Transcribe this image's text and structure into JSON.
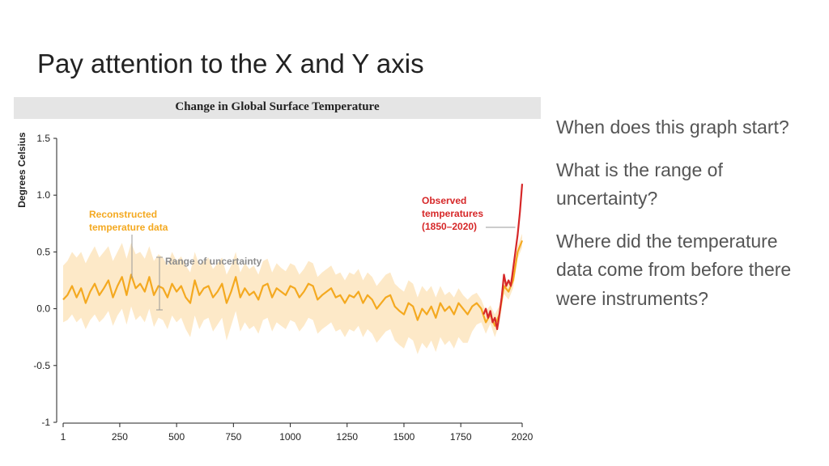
{
  "slide": {
    "title": "Pay attention to the X and Y axis",
    "questions": [
      "When does this graph start?",
      "What is the range of uncertainty?",
      "Where did the temperature data come from before there were instruments?"
    ]
  },
  "colors": {
    "reconstructed": "#f4a920",
    "uncertainty_band": "#fde9c8",
    "observed": "#d62728",
    "uncertainty_label": "#8c8c8c",
    "banner": "#e5e5e5"
  },
  "chart_data": {
    "type": "line",
    "title": "Change in Global Surface Temperature",
    "xlabel": "",
    "ylabel": "Degrees Celsius",
    "xlim": [
      1,
      2020
    ],
    "ylim": [
      -1,
      1.5
    ],
    "x_ticks": [
      "1",
      "250",
      "500",
      "750",
      "1000",
      "1250",
      "1500",
      "1750",
      "2020"
    ],
    "y_ticks": [
      "1.5",
      "1.0",
      "0.5",
      "0.0",
      "-0.5",
      "-1"
    ],
    "grid": false,
    "annotations": {
      "reconstructed": [
        "Reconstructed",
        "temperature data"
      ],
      "uncertainty": "Range of uncertainty",
      "observed": [
        "Observed",
        "temperatures",
        "(1850–2020)"
      ]
    },
    "series": [
      {
        "name": "Reconstructed temperature data",
        "x": [
          1,
          20,
          40,
          60,
          80,
          100,
          120,
          140,
          160,
          180,
          200,
          220,
          240,
          260,
          280,
          300,
          320,
          340,
          360,
          380,
          400,
          420,
          440,
          460,
          480,
          500,
          520,
          540,
          560,
          580,
          600,
          620,
          640,
          660,
          680,
          700,
          720,
          740,
          760,
          780,
          800,
          820,
          840,
          860,
          880,
          900,
          920,
          940,
          960,
          980,
          1000,
          1020,
          1040,
          1060,
          1080,
          1100,
          1120,
          1140,
          1160,
          1180,
          1200,
          1220,
          1240,
          1260,
          1280,
          1300,
          1320,
          1340,
          1360,
          1380,
          1400,
          1420,
          1440,
          1460,
          1480,
          1500,
          1520,
          1540,
          1560,
          1580,
          1600,
          1620,
          1640,
          1660,
          1680,
          1700,
          1720,
          1740,
          1760,
          1780,
          1800,
          1820,
          1840,
          1860,
          1880,
          1900,
          1920,
          1940,
          1960,
          1980,
          2000,
          2020
        ],
        "y": [
          0.08,
          0.12,
          0.2,
          0.1,
          0.18,
          0.05,
          0.15,
          0.22,
          0.12,
          0.18,
          0.25,
          0.1,
          0.2,
          0.28,
          0.12,
          0.3,
          0.18,
          0.22,
          0.15,
          0.28,
          0.12,
          0.2,
          0.18,
          0.1,
          0.22,
          0.15,
          0.2,
          0.1,
          0.05,
          0.25,
          0.12,
          0.18,
          0.2,
          0.1,
          0.15,
          0.22,
          0.05,
          0.15,
          0.28,
          0.1,
          0.18,
          0.12,
          0.15,
          0.08,
          0.2,
          0.22,
          0.1,
          0.18,
          0.15,
          0.12,
          0.2,
          0.18,
          0.1,
          0.15,
          0.22,
          0.2,
          0.08,
          0.12,
          0.15,
          0.18,
          0.1,
          0.12,
          0.05,
          0.12,
          0.1,
          0.15,
          0.05,
          0.12,
          0.08,
          0.0,
          0.05,
          0.1,
          0.12,
          0.02,
          -0.02,
          -0.05,
          0.05,
          0.02,
          -0.1,
          0.0,
          -0.05,
          0.02,
          -0.08,
          0.05,
          -0.02,
          0.02,
          -0.05,
          0.05,
          0.0,
          -0.05,
          0.02,
          0.05,
          0.0,
          -0.12,
          -0.05,
          -0.15,
          -0.05,
          0.2,
          0.15,
          0.25,
          0.5,
          0.6
        ],
        "uncertainty_upper": [
          0.38,
          0.42,
          0.5,
          0.45,
          0.5,
          0.4,
          0.48,
          0.55,
          0.45,
          0.5,
          0.55,
          0.42,
          0.5,
          0.58,
          0.44,
          0.58,
          0.48,
          0.5,
          0.44,
          0.55,
          0.42,
          0.48,
          0.45,
          0.38,
          0.5,
          0.42,
          0.46,
          0.38,
          0.32,
          0.5,
          0.38,
          0.42,
          0.45,
          0.35,
          0.4,
          0.45,
          0.3,
          0.38,
          0.5,
          0.32,
          0.4,
          0.35,
          0.38,
          0.3,
          0.42,
          0.44,
          0.32,
          0.4,
          0.36,
          0.33,
          0.4,
          0.38,
          0.3,
          0.35,
          0.42,
          0.4,
          0.28,
          0.32,
          0.35,
          0.38,
          0.3,
          0.32,
          0.25,
          0.32,
          0.3,
          0.35,
          0.25,
          0.32,
          0.28,
          0.2,
          0.25,
          0.3,
          0.32,
          0.22,
          0.18,
          0.15,
          0.25,
          0.22,
          0.1,
          0.2,
          0.15,
          0.2,
          0.1,
          0.2,
          0.12,
          0.15,
          0.1,
          0.18,
          0.12,
          0.08,
          0.12,
          0.14,
          0.08,
          -0.02,
          0.03,
          -0.05,
          0.03,
          0.27,
          0.22,
          0.32,
          0.56,
          0.66
        ],
        "uncertainty_lower": [
          -0.12,
          -0.1,
          -0.05,
          -0.12,
          -0.08,
          -0.18,
          -0.1,
          -0.05,
          -0.12,
          -0.08,
          -0.02,
          -0.15,
          -0.06,
          0.0,
          -0.14,
          0.02,
          -0.1,
          -0.06,
          -0.12,
          0.0,
          -0.16,
          -0.08,
          -0.1,
          -0.18,
          -0.06,
          -0.12,
          -0.08,
          -0.18,
          -0.25,
          -0.06,
          -0.18,
          -0.1,
          -0.08,
          -0.2,
          -0.14,
          -0.08,
          -0.28,
          -0.15,
          -0.02,
          -0.2,
          -0.12,
          -0.18,
          -0.15,
          -0.22,
          -0.1,
          -0.08,
          -0.2,
          -0.12,
          -0.15,
          -0.18,
          -0.1,
          -0.12,
          -0.2,
          -0.15,
          -0.08,
          -0.1,
          -0.22,
          -0.18,
          -0.15,
          -0.12,
          -0.2,
          -0.18,
          -0.25,
          -0.18,
          -0.2,
          -0.15,
          -0.25,
          -0.18,
          -0.22,
          -0.3,
          -0.25,
          -0.2,
          -0.18,
          -0.28,
          -0.32,
          -0.35,
          -0.25,
          -0.28,
          -0.4,
          -0.3,
          -0.35,
          -0.28,
          -0.38,
          -0.25,
          -0.32,
          -0.28,
          -0.35,
          -0.25,
          -0.3,
          -0.3,
          -0.2,
          -0.14,
          -0.12,
          -0.22,
          -0.13,
          -0.25,
          -0.13,
          0.13,
          0.08,
          0.18,
          0.44,
          0.54
        ]
      },
      {
        "name": "Observed temperatures (1850–2020)",
        "x": [
          1850,
          1860,
          1870,
          1880,
          1890,
          1900,
          1910,
          1920,
          1930,
          1940,
          1950,
          1960,
          1970,
          1980,
          1990,
          2000,
          2010,
          2020
        ],
        "y": [
          -0.05,
          0.0,
          -0.08,
          -0.02,
          -0.12,
          -0.08,
          -0.18,
          -0.05,
          0.1,
          0.3,
          0.2,
          0.25,
          0.2,
          0.35,
          0.5,
          0.65,
          0.85,
          1.1
        ]
      }
    ]
  }
}
